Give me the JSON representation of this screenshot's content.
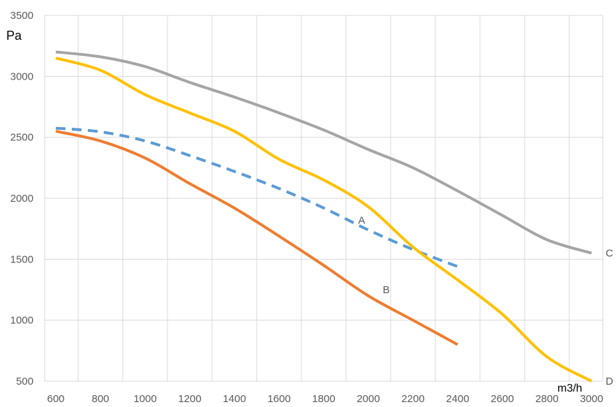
{
  "chart_data": {
    "type": "line",
    "title": "",
    "xlabel": "m3/h",
    "ylabel": "Pa",
    "xlim": [
      550,
      3050
    ],
    "ylim": [
      500,
      3500
    ],
    "x_ticks": [
      600,
      800,
      1000,
      1200,
      1400,
      1600,
      1800,
      2000,
      2200,
      2400,
      2600,
      2800,
      3000
    ],
    "y_ticks": [
      500,
      1000,
      1500,
      2000,
      2500,
      3000,
      3500
    ],
    "grid": true,
    "series": [
      {
        "name": "A",
        "color": "#5b9bd5",
        "dashed": true,
        "label_at": [
          1970,
          1820
        ],
        "x": [
          600,
          800,
          1000,
          1200,
          1400,
          1600,
          1800,
          2000,
          2200,
          2400
        ],
        "y": [
          2575,
          2545,
          2470,
          2350,
          2220,
          2080,
          1920,
          1740,
          1580,
          1440
        ]
      },
      {
        "name": "B",
        "color": "#ed7d31",
        "dashed": false,
        "label_at": [
          2080,
          1250
        ],
        "x": [
          600,
          800,
          1000,
          1200,
          1400,
          1600,
          1800,
          2000,
          2200,
          2400
        ],
        "y": [
          2550,
          2470,
          2330,
          2120,
          1920,
          1690,
          1450,
          1200,
          1000,
          800
        ]
      },
      {
        "name": "C",
        "color": "#a5a5a5",
        "dashed": false,
        "label_at": [
          3080,
          1550
        ],
        "x": [
          600,
          800,
          1000,
          1200,
          1400,
          1600,
          1800,
          2000,
          2200,
          2400,
          2600,
          2800,
          3000
        ],
        "y": [
          3200,
          3160,
          3080,
          2950,
          2830,
          2700,
          2560,
          2400,
          2250,
          2060,
          1860,
          1660,
          1550
        ]
      },
      {
        "name": "D",
        "color": "#ffc000",
        "dashed": false,
        "label_at": [
          3080,
          500
        ],
        "x": [
          600,
          800,
          1000,
          1200,
          1400,
          1600,
          1800,
          2000,
          2200,
          2400,
          2600,
          2800,
          3000
        ],
        "y": [
          3150,
          3050,
          2850,
          2700,
          2550,
          2320,
          2150,
          1930,
          1600,
          1330,
          1050,
          700,
          500
        ]
      }
    ]
  }
}
